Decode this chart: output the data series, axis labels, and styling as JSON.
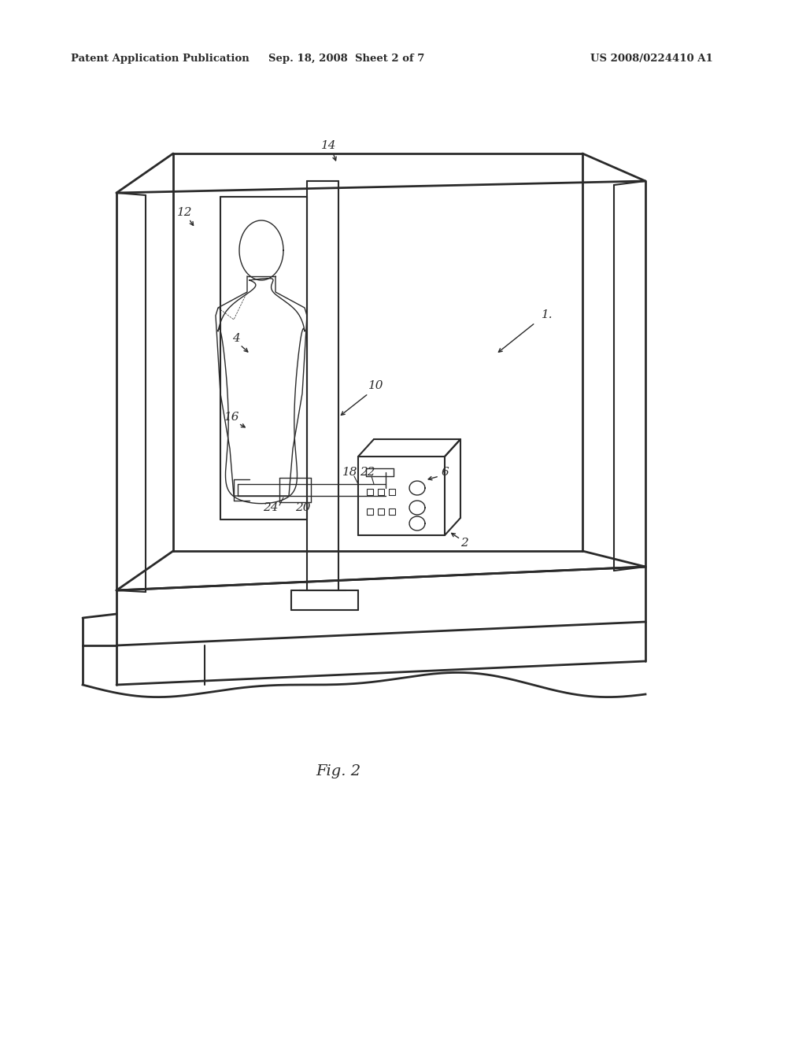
{
  "bg_color": "#ffffff",
  "line_color": "#2a2a2a",
  "header_left": "Patent Application Publication",
  "header_center": "Sep. 18, 2008  Sheet 2 of 7",
  "header_right": "US 2008/0224410 A1",
  "fig_label": "Fig. 2"
}
